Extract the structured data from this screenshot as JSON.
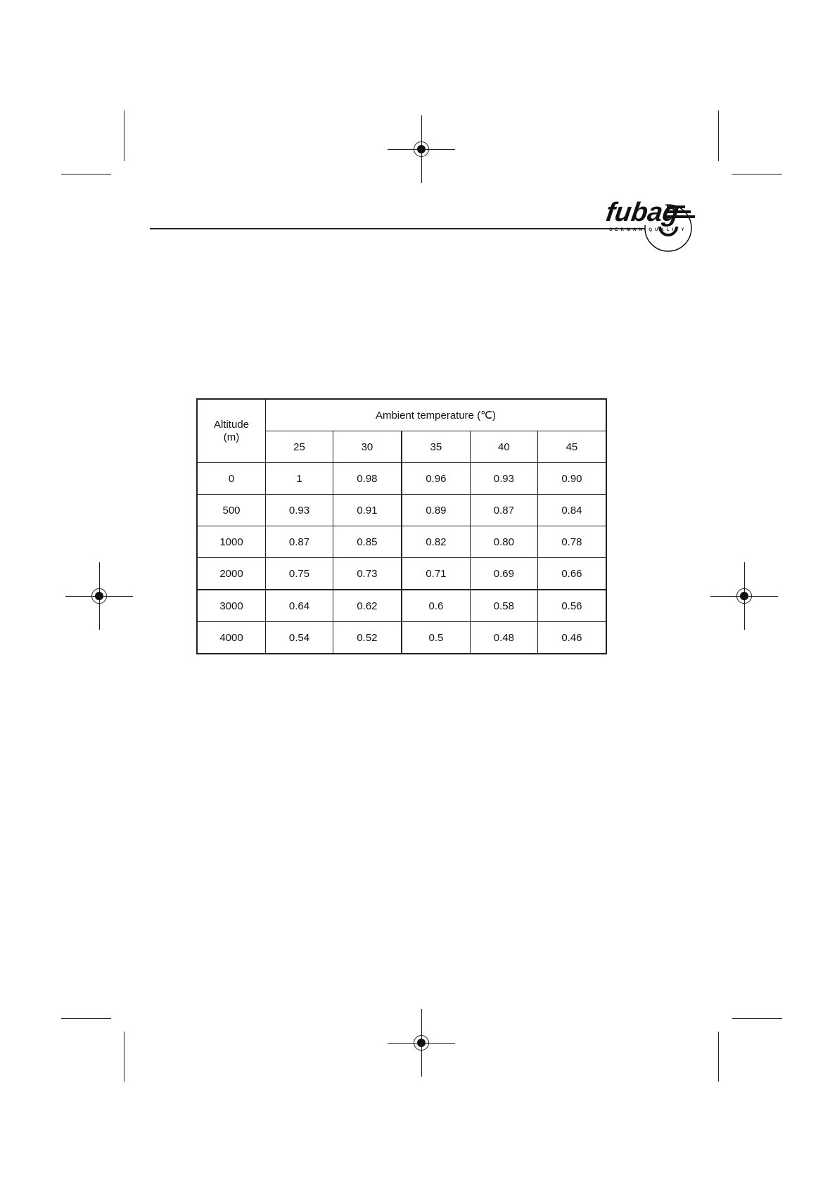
{
  "logo": {
    "brand": "fubag",
    "tagline": "GERMAN QUALITY"
  },
  "table": {
    "row_header": [
      "Altitude",
      "(m)"
    ],
    "column_group_header": "Ambient temperature (℃)",
    "temperatures": [
      "25",
      "30",
      "35",
      "40",
      "45"
    ],
    "rows": [
      {
        "altitude": "0",
        "values": [
          "1",
          "0.98",
          "0.96",
          "0.93",
          "0.90"
        ]
      },
      {
        "altitude": "500",
        "values": [
          "0.93",
          "0.91",
          "0.89",
          "0.87",
          "0.84"
        ]
      },
      {
        "altitude": "1000",
        "values": [
          "0.87",
          "0.85",
          "0.82",
          "0.80",
          "0.78"
        ]
      },
      {
        "altitude": "2000",
        "values": [
          "0.75",
          "0.73",
          "0.71",
          "0.69",
          "0.66"
        ]
      },
      {
        "altitude": "3000",
        "values": [
          "0.64",
          "0.62",
          "0.6",
          "0.58",
          "0.56"
        ]
      },
      {
        "altitude": "4000",
        "values": [
          "0.54",
          "0.52",
          "0.5",
          "0.48",
          "0.46"
        ]
      }
    ]
  }
}
